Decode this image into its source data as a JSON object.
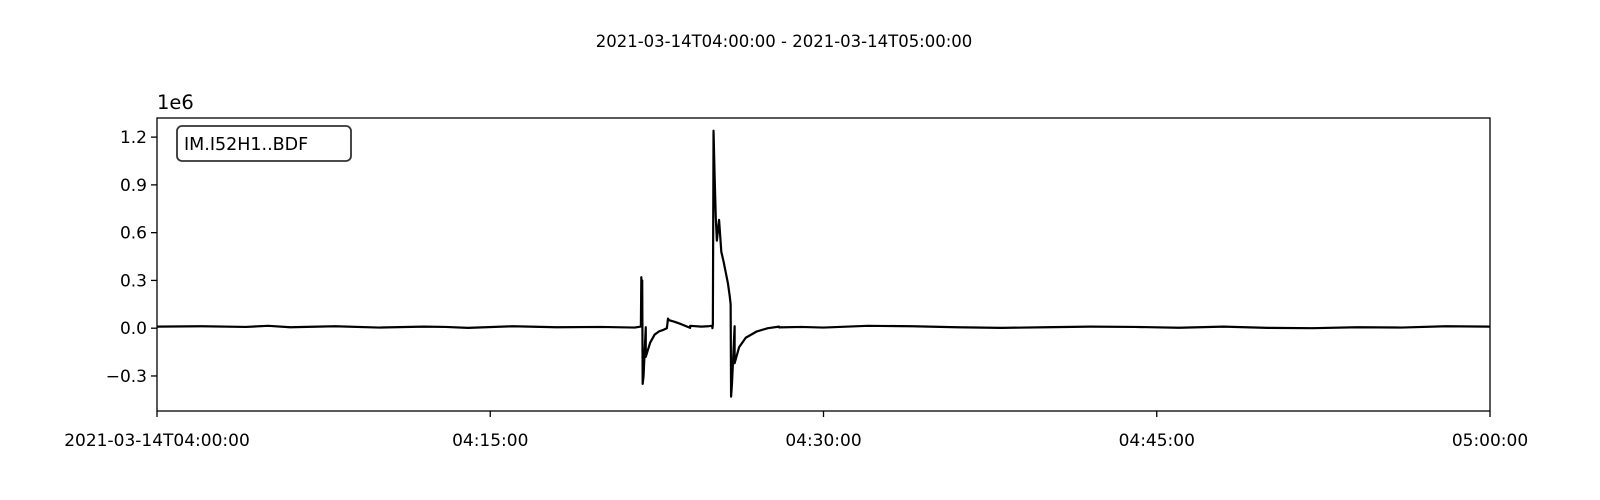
{
  "chart_data": {
    "type": "line",
    "title": "2021-03-14T04:00:00  -  2021-03-14T05:00:00",
    "xlabel": "",
    "ylabel": "",
    "offset_label": "1e6",
    "x_unit": "minutes after 04:00:00",
    "xlim": [
      0,
      60
    ],
    "ylim": [
      -0.52,
      1.32
    ],
    "x_ticks": [
      {
        "value": 0,
        "label": "2021-03-14T04:00:00"
      },
      {
        "value": 15,
        "label": "04:15:00"
      },
      {
        "value": 30,
        "label": "04:30:00"
      },
      {
        "value": 45,
        "label": "04:45:00"
      },
      {
        "value": 60,
        "label": "05:00:00"
      }
    ],
    "y_ticks": [
      {
        "value": -0.3,
        "label": "−0.3"
      },
      {
        "value": 0.0,
        "label": "0.0"
      },
      {
        "value": 0.3,
        "label": "0.3"
      },
      {
        "value": 0.6,
        "label": "0.6"
      },
      {
        "value": 0.9,
        "label": "0.9"
      },
      {
        "value": 1.2,
        "label": "1.2"
      }
    ],
    "grid": false,
    "legend_position": "top-left",
    "series": [
      {
        "name": "IM.I52H1..BDF",
        "color": "#000000",
        "x": [
          0,
          2,
          4,
          5,
          6,
          8,
          10,
          12,
          13,
          14,
          16,
          18,
          20,
          21.5,
          22,
          24,
          25,
          26,
          28,
          30,
          32,
          34,
          36,
          38,
          40,
          42,
          44,
          46,
          48,
          50,
          52,
          54,
          56,
          58,
          60,
          21.78,
          21.8,
          21.82,
          21.84,
          21.86,
          21.9,
          22.0,
          22.2,
          22.4,
          22.6,
          22.8,
          22.95,
          23.0,
          23.05,
          23.3,
          23.6,
          24.0,
          24.5,
          24.8,
          24.95,
          25.0,
          25.02,
          25.05,
          25.1,
          25.15,
          25.2,
          25.3,
          25.4,
          25.5,
          25.6,
          25.7,
          25.78,
          25.82,
          25.84,
          25.88,
          26.0,
          26.2,
          26.5,
          27.0,
          27.5,
          28.0,
          29.0
        ],
        "values": [
          0.01,
          0.012,
          0.008,
          0.015,
          0.006,
          0.012,
          0.004,
          0.01,
          0.008,
          0.002,
          0.012,
          0.006,
          0.008,
          0.004,
          0.006,
          0.002,
          0.008,
          0.012,
          0.01,
          0.004,
          0.015,
          0.012,
          0.006,
          0.002,
          0.006,
          0.01,
          0.008,
          0.003,
          0.01,
          0.002,
          0.0,
          0.006,
          0.004,
          0.012,
          0.01,
          0.01,
          0.32,
          0.15,
          0.3,
          -0.35,
          -0.3,
          -0.18,
          -0.09,
          -0.04,
          -0.02,
          -0.01,
          0.0,
          0.06,
          0.05,
          0.04,
          0.025,
          0.015,
          0.01,
          0.012,
          0.015,
          0.0,
          0.02,
          1.24,
          0.95,
          0.7,
          0.55,
          0.68,
          0.48,
          0.42,
          0.35,
          0.28,
          0.2,
          0.15,
          -0.43,
          -0.35,
          -0.22,
          -0.12,
          -0.06,
          -0.02,
          0.0,
          0.005,
          0.008
        ]
      }
    ]
  }
}
